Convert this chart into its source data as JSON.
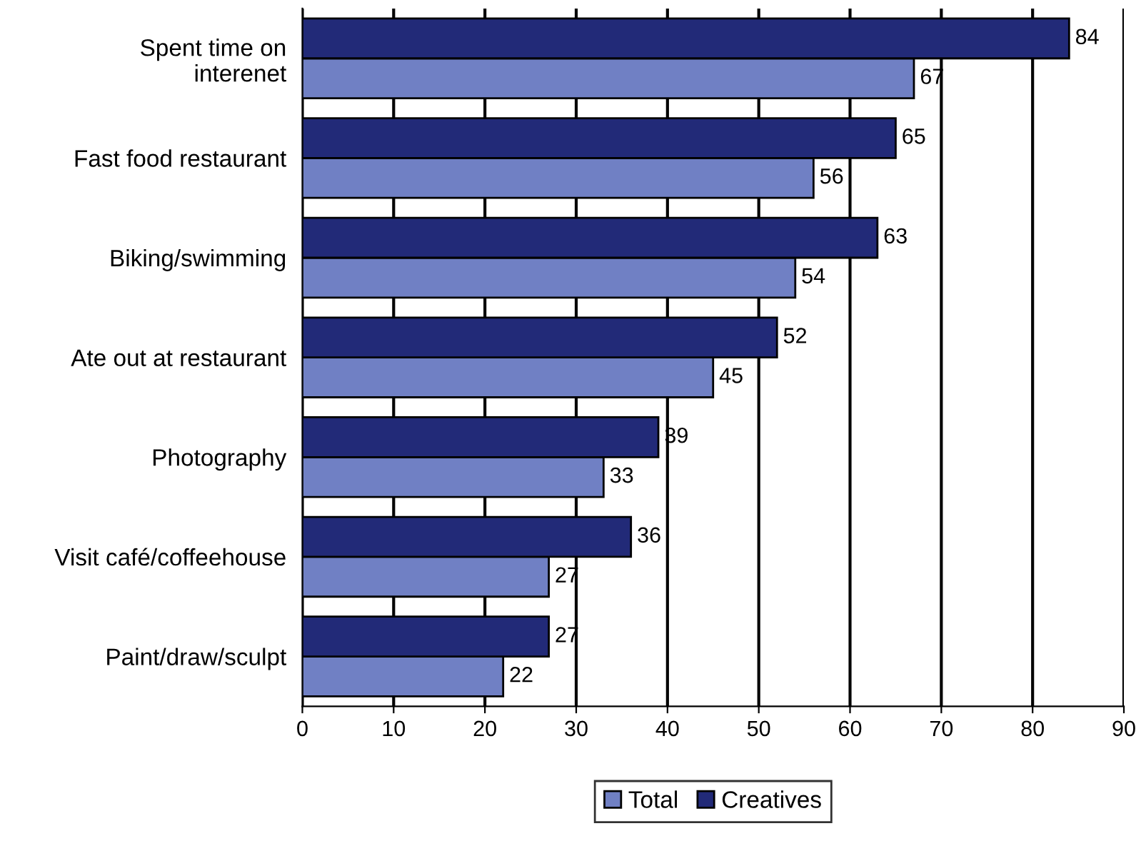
{
  "chart_data": {
    "type": "bar",
    "orientation": "horizontal",
    "categories": [
      "Spent time on\ninterenet",
      "Fast food restaurant",
      "Biking/swimming",
      "Ate out at restaurant",
      "Photography",
      "Visit café/coffeehouse",
      "Paint/draw/sculpt"
    ],
    "series": [
      {
        "name": "Total",
        "color": "#7080c4",
        "values": [
          67,
          56,
          54,
          45,
          33,
          27,
          22
        ]
      },
      {
        "name": "Creatives",
        "color": "#222a78",
        "values": [
          84,
          65,
          63,
          52,
          39,
          36,
          27
        ]
      }
    ],
    "xlim": [
      0,
      90
    ],
    "xticks": [
      0,
      10,
      20,
      30,
      40,
      50,
      60,
      70,
      80,
      90
    ],
    "grid": "x",
    "legend": "bottom",
    "data_labels": true
  }
}
